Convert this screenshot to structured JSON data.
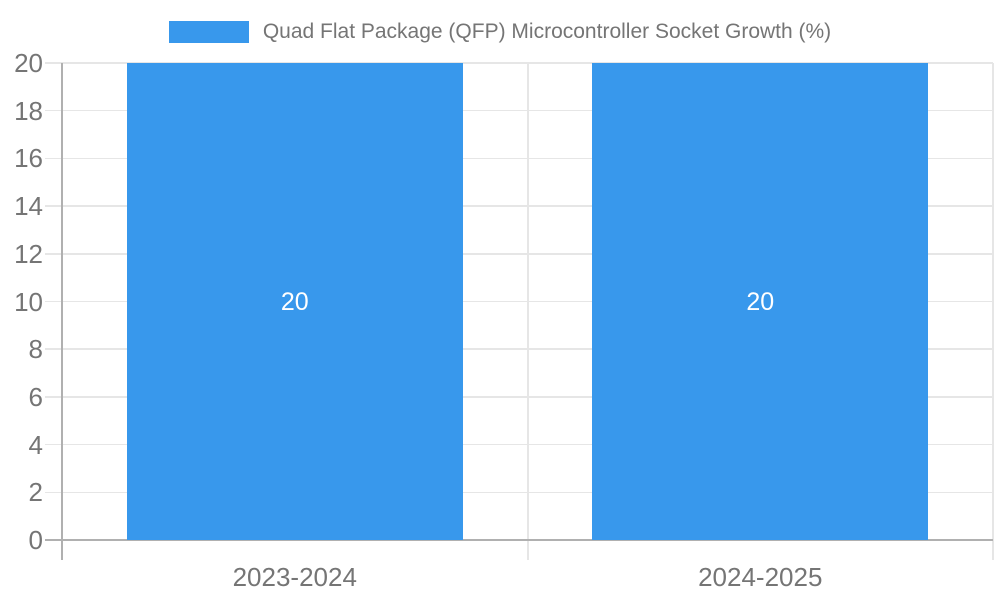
{
  "legend": {
    "label": "Quad Flat Package (QFP) Microcontroller Socket Growth (%)"
  },
  "chart_data": {
    "type": "bar",
    "title": "Quad Flat Package (QFP) Microcontroller Socket Growth (%)",
    "categories": [
      "2023-2024",
      "2024-2025"
    ],
    "series": [
      {
        "name": "Quad Flat Package (QFP) Microcontroller Socket Growth (%)",
        "values": [
          20,
          20
        ]
      }
    ],
    "bar_value_labels": [
      "20",
      "20"
    ],
    "xlabel": "",
    "ylabel": "",
    "ylim": [
      0,
      20
    ],
    "ytick_step": 2,
    "yticks": [
      0,
      2,
      4,
      6,
      8,
      10,
      12,
      14,
      16,
      18,
      20
    ],
    "grid": true,
    "legend_position": "top",
    "colors": {
      "bar": "#3898ec",
      "grid": "#e6e6e6",
      "axis": "#b0b0b0",
      "text": "#757575",
      "bar_label": "#ffffff",
      "background": "#ffffff"
    }
  }
}
